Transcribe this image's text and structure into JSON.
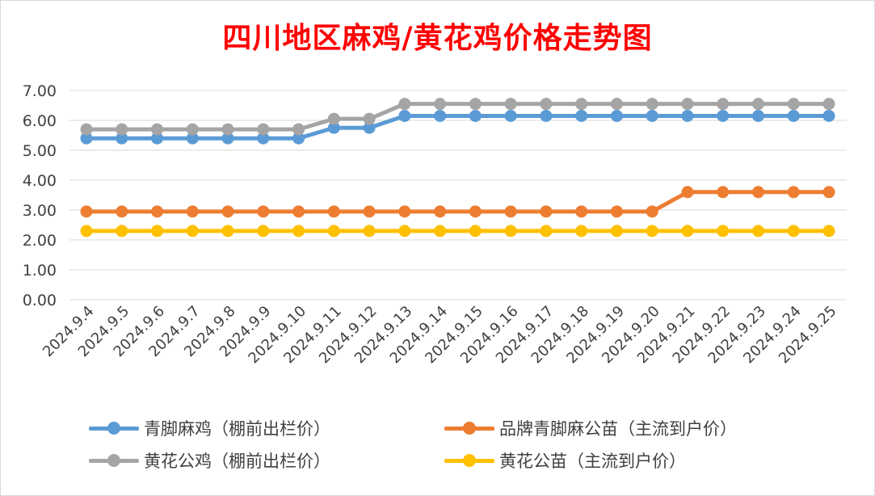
{
  "chart_data": {
    "type": "line",
    "title": "四川地区麻鸡/黄花鸡价格走势图",
    "xlabel": "",
    "ylabel": "",
    "ylim": [
      0,
      7
    ],
    "yticks": [
      "0.00",
      "1.00",
      "2.00",
      "3.00",
      "4.00",
      "5.00",
      "6.00",
      "7.00"
    ],
    "grid": true,
    "legend_position": "bottom",
    "categories": [
      "2024.9.4",
      "2024.9.5",
      "2024.9.6",
      "2024.9.7",
      "2024.9.8",
      "2024.9.9",
      "2024.9.10",
      "2024.9.11",
      "2024.9.12",
      "2024.9.13",
      "2024.9.14",
      "2024.9.15",
      "2024.9.16",
      "2024.9.17",
      "2024.9.18",
      "2024.9.19",
      "2024.9.20",
      "2024.9.21",
      "2024.9.22",
      "2024.9.23",
      "2024.9.24",
      "2024.9.25"
    ],
    "series": [
      {
        "name": "青脚麻鸡（棚前出栏价）",
        "color": "#5b9bd5",
        "values": [
          5.4,
          5.4,
          5.4,
          5.4,
          5.4,
          5.4,
          5.4,
          5.75,
          5.75,
          6.15,
          6.15,
          6.15,
          6.15,
          6.15,
          6.15,
          6.15,
          6.15,
          6.15,
          6.15,
          6.15,
          6.15,
          6.15
        ]
      },
      {
        "name": "品牌青脚麻公苗（主流到户价）",
        "color": "#ed7d31",
        "values": [
          2.95,
          2.95,
          2.95,
          2.95,
          2.95,
          2.95,
          2.95,
          2.95,
          2.95,
          2.95,
          2.95,
          2.95,
          2.95,
          2.95,
          2.95,
          2.95,
          2.95,
          3.6,
          3.6,
          3.6,
          3.6,
          3.6
        ]
      },
      {
        "name": "黄花公鸡（棚前出栏价）",
        "color": "#a5a5a5",
        "values": [
          5.7,
          5.7,
          5.7,
          5.7,
          5.7,
          5.7,
          5.7,
          6.05,
          6.05,
          6.55,
          6.55,
          6.55,
          6.55,
          6.55,
          6.55,
          6.55,
          6.55,
          6.55,
          6.55,
          6.55,
          6.55,
          6.55
        ]
      },
      {
        "name": "黄花公苗（主流到户价）",
        "color": "#ffc000",
        "values": [
          2.3,
          2.3,
          2.3,
          2.3,
          2.3,
          2.3,
          2.3,
          2.3,
          2.3,
          2.3,
          2.3,
          2.3,
          2.3,
          2.3,
          2.3,
          2.3,
          2.3,
          2.3,
          2.3,
          2.3,
          2.3,
          2.3
        ]
      }
    ]
  }
}
